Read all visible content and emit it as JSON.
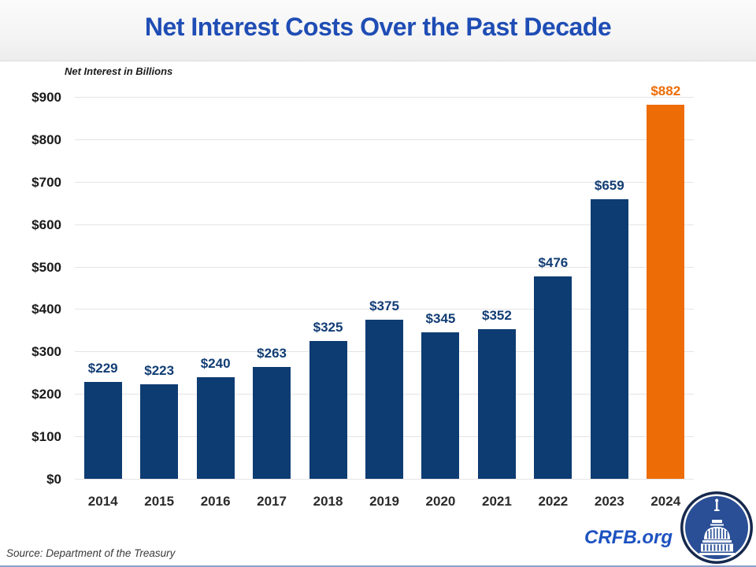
{
  "title": "Net Interest Costs Over the Past Decade",
  "subtitle": "Net Interest in Billions",
  "source": "Source: Department of the Treasury",
  "branding": {
    "site": "CRFB.org",
    "logo_icon": "capitol-dome-icon"
  },
  "colors": {
    "title_blue": "#1f4db5",
    "bar_navy": "#0d3c72",
    "bar_highlight_orange": "#ee6c05",
    "value_label_navy": "#123d74",
    "value_label_highlight": "#ee6c05",
    "gridline": "#e4e4e4",
    "brand_blue": "#1d52c0",
    "logo_inner_blue": "#2a4f96",
    "logo_ring_navy": "#16294e"
  },
  "chart_data": {
    "type": "bar",
    "title": "Net Interest Costs Over the Past Decade",
    "ylabel": "Net Interest in Billions",
    "xlabel": "",
    "categories": [
      "2014",
      "2015",
      "2016",
      "2017",
      "2018",
      "2019",
      "2020",
      "2021",
      "2022",
      "2023",
      "2024"
    ],
    "values": [
      229,
      223,
      240,
      263,
      325,
      375,
      345,
      352,
      476,
      659,
      882
    ],
    "value_labels": [
      "$229",
      "$223",
      "$240",
      "$263",
      "$325",
      "$375",
      "$345",
      "$352",
      "$476",
      "$659",
      "$882"
    ],
    "highlight_index": 10,
    "ylim": [
      0,
      900
    ],
    "ytick_step": 100,
    "ytick_labels": [
      "$0",
      "$100",
      "$200",
      "$300",
      "$400",
      "$500",
      "$600",
      "$700",
      "$800",
      "$900"
    ],
    "grid": true,
    "legend": false
  }
}
